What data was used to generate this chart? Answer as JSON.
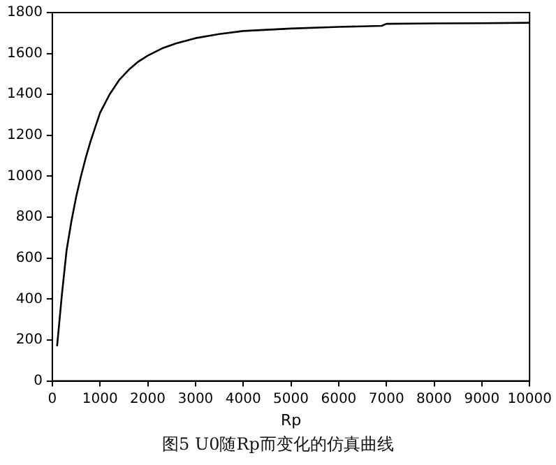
{
  "chart_data": {
    "type": "line",
    "xlabel": "Rp",
    "annotations": [
      "图5  U0随Rp而变化的仿真曲线"
    ],
    "x": [
      100,
      200,
      300,
      400,
      500,
      600,
      700,
      800,
      900,
      1000,
      1200,
      1400,
      1600,
      1800,
      2000,
      2300,
      2600,
      3000,
      3500,
      4000,
      5000,
      6000,
      6900,
      7000,
      8000,
      9000,
      10000
    ],
    "series": [
      {
        "color": "#000000",
        "values": [
          170,
          420,
          640,
          780,
          900,
          1000,
          1090,
          1170,
          1240,
          1310,
          1400,
          1470,
          1520,
          1560,
          1590,
          1625,
          1650,
          1675,
          1695,
          1710,
          1722,
          1730,
          1735,
          1745,
          1747,
          1748,
          1750
        ]
      }
    ],
    "xlim": [
      0,
      10000
    ],
    "xticks": [
      0,
      1000,
      2000,
      3000,
      4000,
      5000,
      6000,
      7000,
      8000,
      9000,
      10000
    ],
    "ylim": [
      0,
      1800
    ],
    "yticks": [
      0,
      200,
      400,
      600,
      800,
      1000,
      1200,
      1400,
      1600,
      1800
    ],
    "grid": false,
    "legend": false,
    "marker": "none",
    "line_style": "solid"
  }
}
